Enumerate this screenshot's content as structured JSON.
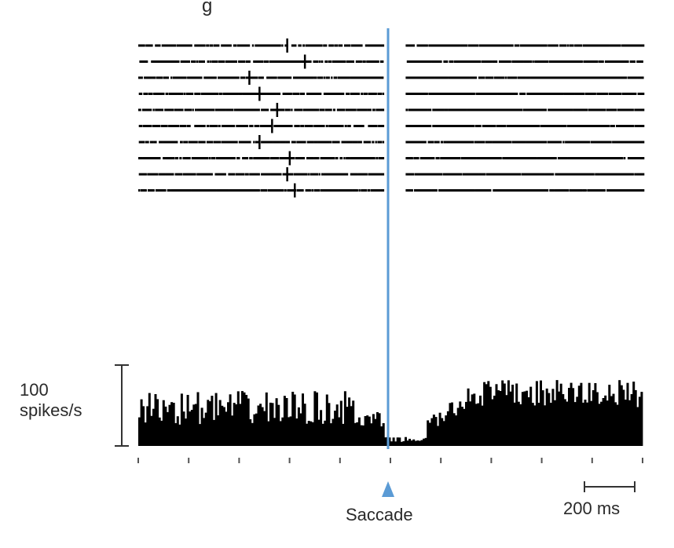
{
  "header_fragment": "g",
  "chart_data": {
    "type": "raster+histogram",
    "event_label": "Saccade",
    "raster": {
      "trials": 10,
      "x_range_ms": [
        -1000,
        1000
      ],
      "saccade_onset_ms": 0,
      "suppression_window_ms": [
        -30,
        60
      ],
      "trial_markers_ms": [
        -410,
        -340,
        -560,
        -520,
        -450,
        -470,
        -520,
        -400,
        -410,
        -380
      ]
    },
    "histogram": {
      "y_scale_label_top": "100",
      "y_scale_label_bottom": "spikes/s",
      "y_scale_value": 100,
      "x_range_ms": [
        -1000,
        1000
      ],
      "tick_spacing_ms": 200,
      "time_scale_label": "200 ms",
      "firing_rate_before_saccade": 45,
      "firing_rate_at_saccade": 5,
      "firing_rate_after_saccade": 65
    }
  },
  "colors": {
    "saccade_line": "#5b9bd5",
    "spikes": "#000000",
    "bars": "#000000"
  }
}
